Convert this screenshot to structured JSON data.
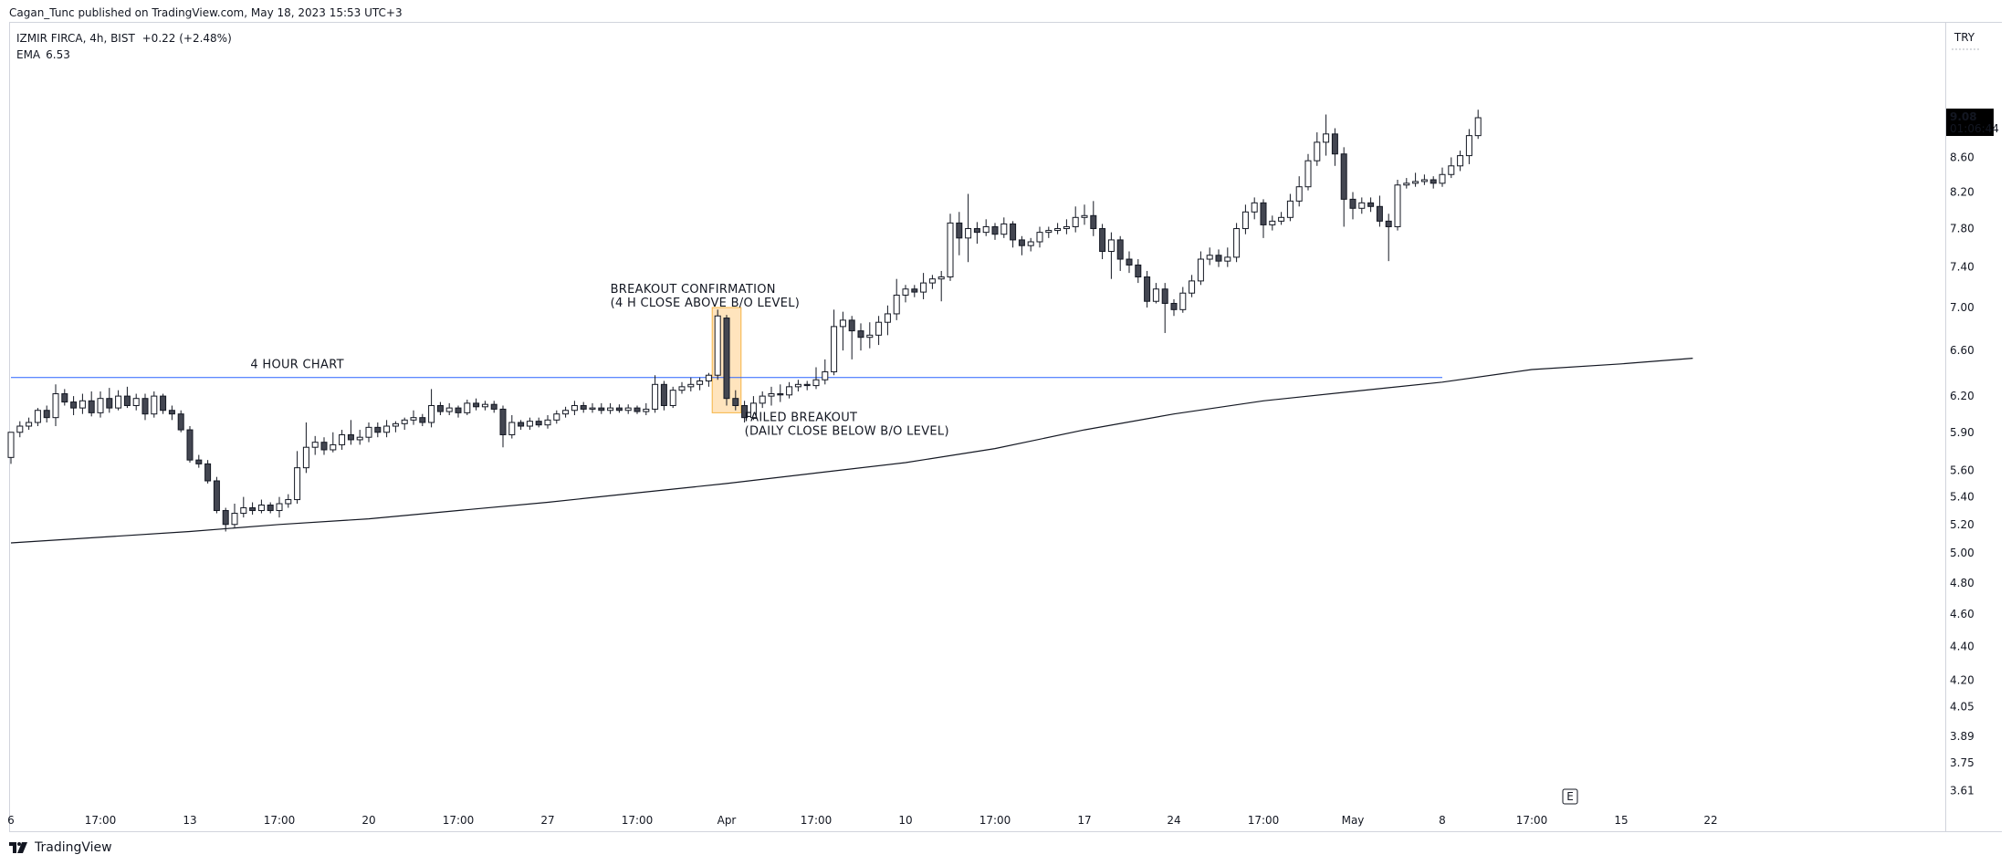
{
  "header": {
    "publisher": "Cagan_Tunc published on TradingView.com, May 18, 2023 15:53 UTC+3"
  },
  "legend": {
    "symbol": "IZMIR FIRCA, 4h, BIST",
    "change": "+0.22 (+2.48%)",
    "ema_label": "EMA",
    "ema_value": "6.53"
  },
  "brand": {
    "label": "TradingView",
    "icon": "tradingview-logo-icon"
  },
  "price_axis": {
    "currency": "TRY",
    "last_price": "9.08",
    "countdown": "01:06:44",
    "last_price_bg": "#000000"
  },
  "event_marker": {
    "label": "E"
  },
  "colors": {
    "up_candle_fill": "#ffffff",
    "down_candle_fill": "#434651",
    "candle_border": "#131722",
    "breakout_line": "#2962ff",
    "ema_line": "#131722",
    "highlight_fill": "#ffe0b2",
    "highlight_border": "#f5a623"
  },
  "chart_data": {
    "type": "candlestick",
    "y_scale": "log",
    "ylim": [
      3.55,
      10.2
    ],
    "y_ticks": [
      "9.08",
      "8.60",
      "8.20",
      "7.80",
      "7.40",
      "7.00",
      "6.60",
      "6.20",
      "5.90",
      "5.60",
      "5.40",
      "5.20",
      "5.00",
      "4.80",
      "4.60",
      "4.40",
      "4.20",
      "4.05",
      "3.89",
      "3.75",
      "3.61"
    ],
    "x_ticks": [
      {
        "i": 0,
        "label": "6"
      },
      {
        "i": 10,
        "label": "17:00"
      },
      {
        "i": 20,
        "label": "13"
      },
      {
        "i": 30,
        "label": "17:00"
      },
      {
        "i": 40,
        "label": "20"
      },
      {
        "i": 50,
        "label": "17:00"
      },
      {
        "i": 60,
        "label": "27"
      },
      {
        "i": 70,
        "label": "17:00"
      },
      {
        "i": 80,
        "label": "Apr"
      },
      {
        "i": 90,
        "label": "17:00"
      },
      {
        "i": 100,
        "label": "10"
      },
      {
        "i": 110,
        "label": "17:00"
      },
      {
        "i": 120,
        "label": "17"
      },
      {
        "i": 130,
        "label": "24"
      },
      {
        "i": 140,
        "label": "17:00"
      },
      {
        "i": 150,
        "label": "May"
      },
      {
        "i": 160,
        "label": "8"
      },
      {
        "i": 170,
        "label": "17:00"
      },
      {
        "i": 180,
        "label": "15"
      },
      {
        "i": 190,
        "label": "22"
      }
    ],
    "candles": [
      [
        5.7,
        5.9,
        5.9,
        5.65
      ],
      [
        5.9,
        5.95,
        5.99,
        5.86
      ],
      [
        5.95,
        5.98,
        6.02,
        5.92
      ],
      [
        5.98,
        6.08,
        6.1,
        5.95
      ],
      [
        6.08,
        6.02,
        6.12,
        5.98
      ],
      [
        6.02,
        6.22,
        6.3,
        5.95
      ],
      [
        6.22,
        6.15,
        6.26,
        6.12
      ],
      [
        6.15,
        6.1,
        6.2,
        6.04
      ],
      [
        6.1,
        6.16,
        6.22,
        6.05
      ],
      [
        6.16,
        6.06,
        6.24,
        6.03
      ],
      [
        6.06,
        6.18,
        6.24,
        6.02
      ],
      [
        6.18,
        6.1,
        6.27,
        6.06
      ],
      [
        6.1,
        6.2,
        6.25,
        6.08
      ],
      [
        6.2,
        6.12,
        6.28,
        6.1
      ],
      [
        6.12,
        6.18,
        6.22,
        6.08
      ],
      [
        6.18,
        6.05,
        6.22,
        6.0
      ],
      [
        6.05,
        6.2,
        6.24,
        6.02
      ],
      [
        6.2,
        6.08,
        6.22,
        6.05
      ],
      [
        6.08,
        6.05,
        6.12,
        6.0
      ],
      [
        6.05,
        5.92,
        6.08,
        5.9
      ],
      [
        5.92,
        5.68,
        5.95,
        5.66
      ],
      [
        5.68,
        5.65,
        5.72,
        5.62
      ],
      [
        5.65,
        5.52,
        5.68,
        5.5
      ],
      [
        5.52,
        5.3,
        5.55,
        5.28
      ],
      [
        5.3,
        5.2,
        5.32,
        5.15
      ],
      [
        5.2,
        5.28,
        5.35,
        5.18
      ],
      [
        5.28,
        5.32,
        5.4,
        5.25
      ],
      [
        5.32,
        5.3,
        5.36,
        5.27
      ],
      [
        5.3,
        5.34,
        5.38,
        5.28
      ],
      [
        5.34,
        5.3,
        5.36,
        5.28
      ],
      [
        5.3,
        5.35,
        5.4,
        5.25
      ],
      [
        5.35,
        5.38,
        5.42,
        5.32
      ],
      [
        5.38,
        5.62,
        5.75,
        5.35
      ],
      [
        5.62,
        5.78,
        5.98,
        5.58
      ],
      [
        5.78,
        5.82,
        5.87,
        5.72
      ],
      [
        5.82,
        5.76,
        5.86,
        5.72
      ],
      [
        5.76,
        5.8,
        5.9,
        5.74
      ],
      [
        5.8,
        5.88,
        5.92,
        5.76
      ],
      [
        5.88,
        5.84,
        6.0,
        5.8
      ],
      [
        5.84,
        5.86,
        5.92,
        5.8
      ],
      [
        5.86,
        5.94,
        5.98,
        5.82
      ],
      [
        5.94,
        5.9,
        5.98,
        5.86
      ],
      [
        5.9,
        5.95,
        6.0,
        5.86
      ],
      [
        5.95,
        5.97,
        5.99,
        5.9
      ],
      [
        5.97,
        6.0,
        6.02,
        5.92
      ],
      [
        6.0,
        6.02,
        6.08,
        5.96
      ],
      [
        6.02,
        5.98,
        6.05,
        5.95
      ],
      [
        5.98,
        6.12,
        6.26,
        5.94
      ],
      [
        6.12,
        6.07,
        6.15,
        6.04
      ],
      [
        6.07,
        6.1,
        6.14,
        6.04
      ],
      [
        6.1,
        6.06,
        6.12,
        6.02
      ],
      [
        6.06,
        6.14,
        6.17,
        6.04
      ],
      [
        6.14,
        6.11,
        6.18,
        6.08
      ],
      [
        6.11,
        6.13,
        6.16,
        6.08
      ],
      [
        6.13,
        6.09,
        6.16,
        6.06
      ],
      [
        6.09,
        5.88,
        6.12,
        5.78
      ],
      [
        5.88,
        5.98,
        6.04,
        5.85
      ],
      [
        5.98,
        5.95,
        6.0,
        5.92
      ],
      [
        5.95,
        5.99,
        6.02,
        5.92
      ],
      [
        5.99,
        5.96,
        6.02,
        5.94
      ],
      [
        5.96,
        6.0,
        6.04,
        5.93
      ],
      [
        6.0,
        6.05,
        6.08,
        5.97
      ],
      [
        6.05,
        6.08,
        6.11,
        6.02
      ],
      [
        6.08,
        6.12,
        6.16,
        6.04
      ],
      [
        6.12,
        6.09,
        6.15,
        6.06
      ],
      [
        6.09,
        6.1,
        6.14,
        6.06
      ],
      [
        6.1,
        6.08,
        6.14,
        6.05
      ],
      [
        6.08,
        6.1,
        6.14,
        6.05
      ],
      [
        6.1,
        6.08,
        6.13,
        6.06
      ],
      [
        6.08,
        6.1,
        6.13,
        6.05
      ],
      [
        6.1,
        6.07,
        6.12,
        6.05
      ],
      [
        6.07,
        6.09,
        6.14,
        6.04
      ],
      [
        6.09,
        6.3,
        6.38,
        6.06
      ],
      [
        6.3,
        6.12,
        6.33,
        6.08
      ],
      [
        6.12,
        6.25,
        6.28,
        6.1
      ],
      [
        6.25,
        6.28,
        6.32,
        6.22
      ],
      [
        6.28,
        6.3,
        6.36,
        6.24
      ],
      [
        6.3,
        6.33,
        6.36,
        6.25
      ],
      [
        6.33,
        6.38,
        6.4,
        6.28
      ],
      [
        6.38,
        6.92,
        6.98,
        6.34
      ],
      [
        6.9,
        6.18,
        6.93,
        6.12
      ],
      [
        6.18,
        6.12,
        6.25,
        6.08
      ],
      [
        6.12,
        6.02,
        6.16,
        5.98
      ],
      [
        6.02,
        6.14,
        6.2,
        6.0
      ],
      [
        6.14,
        6.2,
        6.24,
        6.1
      ],
      [
        6.2,
        6.22,
        6.28,
        6.12
      ],
      [
        6.22,
        6.21,
        6.3,
        6.15
      ],
      [
        6.21,
        6.28,
        6.32,
        6.18
      ],
      [
        6.28,
        6.3,
        6.34,
        6.24
      ],
      [
        6.3,
        6.29,
        6.33,
        6.25
      ],
      [
        6.29,
        6.34,
        6.45,
        6.26
      ],
      [
        6.34,
        6.41,
        6.52,
        6.3
      ],
      [
        6.41,
        6.82,
        6.98,
        6.38
      ],
      [
        6.82,
        6.88,
        6.96,
        6.6
      ],
      [
        6.88,
        6.78,
        6.92,
        6.52
      ],
      [
        6.78,
        6.72,
        6.85,
        6.6
      ],
      [
        6.72,
        6.74,
        6.86,
        6.62
      ],
      [
        6.74,
        6.86,
        6.92,
        6.65
      ],
      [
        6.86,
        6.94,
        7.02,
        6.74
      ],
      [
        6.94,
        7.12,
        7.28,
        6.88
      ],
      [
        7.12,
        7.18,
        7.22,
        7.05
      ],
      [
        7.18,
        7.15,
        7.22,
        7.1
      ],
      [
        7.15,
        7.24,
        7.34,
        7.08
      ],
      [
        7.24,
        7.28,
        7.32,
        7.18
      ],
      [
        7.28,
        7.3,
        7.36,
        7.06
      ],
      [
        7.3,
        7.86,
        7.96,
        7.26
      ],
      [
        7.86,
        7.7,
        7.98,
        7.52
      ],
      [
        7.7,
        7.8,
        8.18,
        7.45
      ],
      [
        7.8,
        7.76,
        7.87,
        7.64
      ],
      [
        7.76,
        7.82,
        7.9,
        7.72
      ],
      [
        7.82,
        7.74,
        7.86,
        7.68
      ],
      [
        7.74,
        7.85,
        7.92,
        7.7
      ],
      [
        7.85,
        7.68,
        7.88,
        7.6
      ],
      [
        7.68,
        7.62,
        7.72,
        7.52
      ],
      [
        7.62,
        7.66,
        7.7,
        7.56
      ],
      [
        7.66,
        7.76,
        7.82,
        7.6
      ],
      [
        7.76,
        7.78,
        7.82,
        7.7
      ],
      [
        7.78,
        7.8,
        7.86,
        7.74
      ],
      [
        7.8,
        7.82,
        7.9,
        7.74
      ],
      [
        7.82,
        7.92,
        8.04,
        7.76
      ],
      [
        7.92,
        7.94,
        8.06,
        7.84
      ],
      [
        7.94,
        7.8,
        8.1,
        7.72
      ],
      [
        7.8,
        7.56,
        7.85,
        7.48
      ],
      [
        7.56,
        7.68,
        7.76,
        7.28
      ],
      [
        7.68,
        7.48,
        7.72,
        7.36
      ],
      [
        7.48,
        7.42,
        7.56,
        7.34
      ],
      [
        7.42,
        7.3,
        7.48,
        7.24
      ],
      [
        7.3,
        7.06,
        7.36,
        7.0
      ],
      [
        7.06,
        7.18,
        7.24,
        7.04
      ],
      [
        7.18,
        7.04,
        7.24,
        6.76
      ],
      [
        7.04,
        6.98,
        7.08,
        6.92
      ],
      [
        6.98,
        7.14,
        7.2,
        6.95
      ],
      [
        7.14,
        7.26,
        7.32,
        7.1
      ],
      [
        7.26,
        7.48,
        7.56,
        7.22
      ],
      [
        7.48,
        7.52,
        7.6,
        7.42
      ],
      [
        7.52,
        7.46,
        7.58,
        7.4
      ],
      [
        7.46,
        7.5,
        7.6,
        7.4
      ],
      [
        7.5,
        7.8,
        7.86,
        7.45
      ],
      [
        7.8,
        7.98,
        8.06,
        7.74
      ],
      [
        7.98,
        8.08,
        8.14,
        7.9
      ],
      [
        8.08,
        7.84,
        8.12,
        7.7
      ],
      [
        7.84,
        7.88,
        7.94,
        7.78
      ],
      [
        7.88,
        7.92,
        7.98,
        7.84
      ],
      [
        7.92,
        8.1,
        8.18,
        7.88
      ],
      [
        8.1,
        8.26,
        8.38,
        8.04
      ],
      [
        8.26,
        8.56,
        8.64,
        8.22
      ],
      [
        8.56,
        8.78,
        8.9,
        8.5
      ],
      [
        8.78,
        8.88,
        9.12,
        8.62
      ],
      [
        8.88,
        8.64,
        8.95,
        8.5
      ],
      [
        8.64,
        8.12,
        8.72,
        7.82
      ],
      [
        8.12,
        8.02,
        8.2,
        7.9
      ],
      [
        8.02,
        8.08,
        8.14,
        7.96
      ],
      [
        8.08,
        8.04,
        8.14,
        7.98
      ],
      [
        8.04,
        7.88,
        8.16,
        7.82
      ],
      [
        7.88,
        7.82,
        7.96,
        7.46
      ],
      [
        7.82,
        8.28,
        8.34,
        7.78
      ],
      [
        8.28,
        8.3,
        8.36,
        8.24
      ],
      [
        8.3,
        8.32,
        8.42,
        8.26
      ],
      [
        8.32,
        8.34,
        8.4,
        8.28
      ],
      [
        8.34,
        8.3,
        8.38,
        8.24
      ],
      [
        8.3,
        8.4,
        8.48,
        8.26
      ],
      [
        8.4,
        8.5,
        8.6,
        8.36
      ],
      [
        8.5,
        8.62,
        8.68,
        8.44
      ],
      [
        8.62,
        8.86,
        8.94,
        8.52
      ],
      [
        8.86,
        9.08,
        9.18,
        8.82
      ]
    ],
    "ema": {
      "name": "EMA",
      "i": [
        0,
        20,
        30,
        40,
        50,
        60,
        70,
        80,
        90,
        100,
        110,
        120,
        130,
        140,
        150,
        160,
        170,
        180,
        188
      ],
      "values": [
        5.07,
        5.15,
        5.2,
        5.24,
        5.3,
        5.36,
        5.43,
        5.5,
        5.58,
        5.66,
        5.77,
        5.92,
        6.05,
        6.16,
        6.24,
        6.32,
        6.43,
        6.48,
        6.53
      ]
    },
    "breakout_level": {
      "value": 6.36,
      "i_start": 0,
      "i_end": 160
    },
    "highlight": {
      "i_start": 79,
      "i_end": 81,
      "y_low": 6.06,
      "y_high": 7.0
    },
    "annotations": [
      {
        "id": "chart-note",
        "lines": [
          "4 HOUR CHART"
        ],
        "i": 32,
        "y": 6.44,
        "anchor": "middle"
      },
      {
        "id": "breakout-confirmation",
        "lines": [
          "BREAKOUT CONFIRMATION",
          "(4 H CLOSE ABOVE B/O LEVEL)"
        ],
        "i": 67,
        "y": 7.14,
        "anchor": "start"
      },
      {
        "id": "failed-breakout",
        "lines": [
          "FAILED BREAKOUT",
          "(DAILY CLOSE BELOW B/O LEVEL)"
        ],
        "i": 82,
        "y": 5.99,
        "anchor": "start"
      }
    ]
  }
}
